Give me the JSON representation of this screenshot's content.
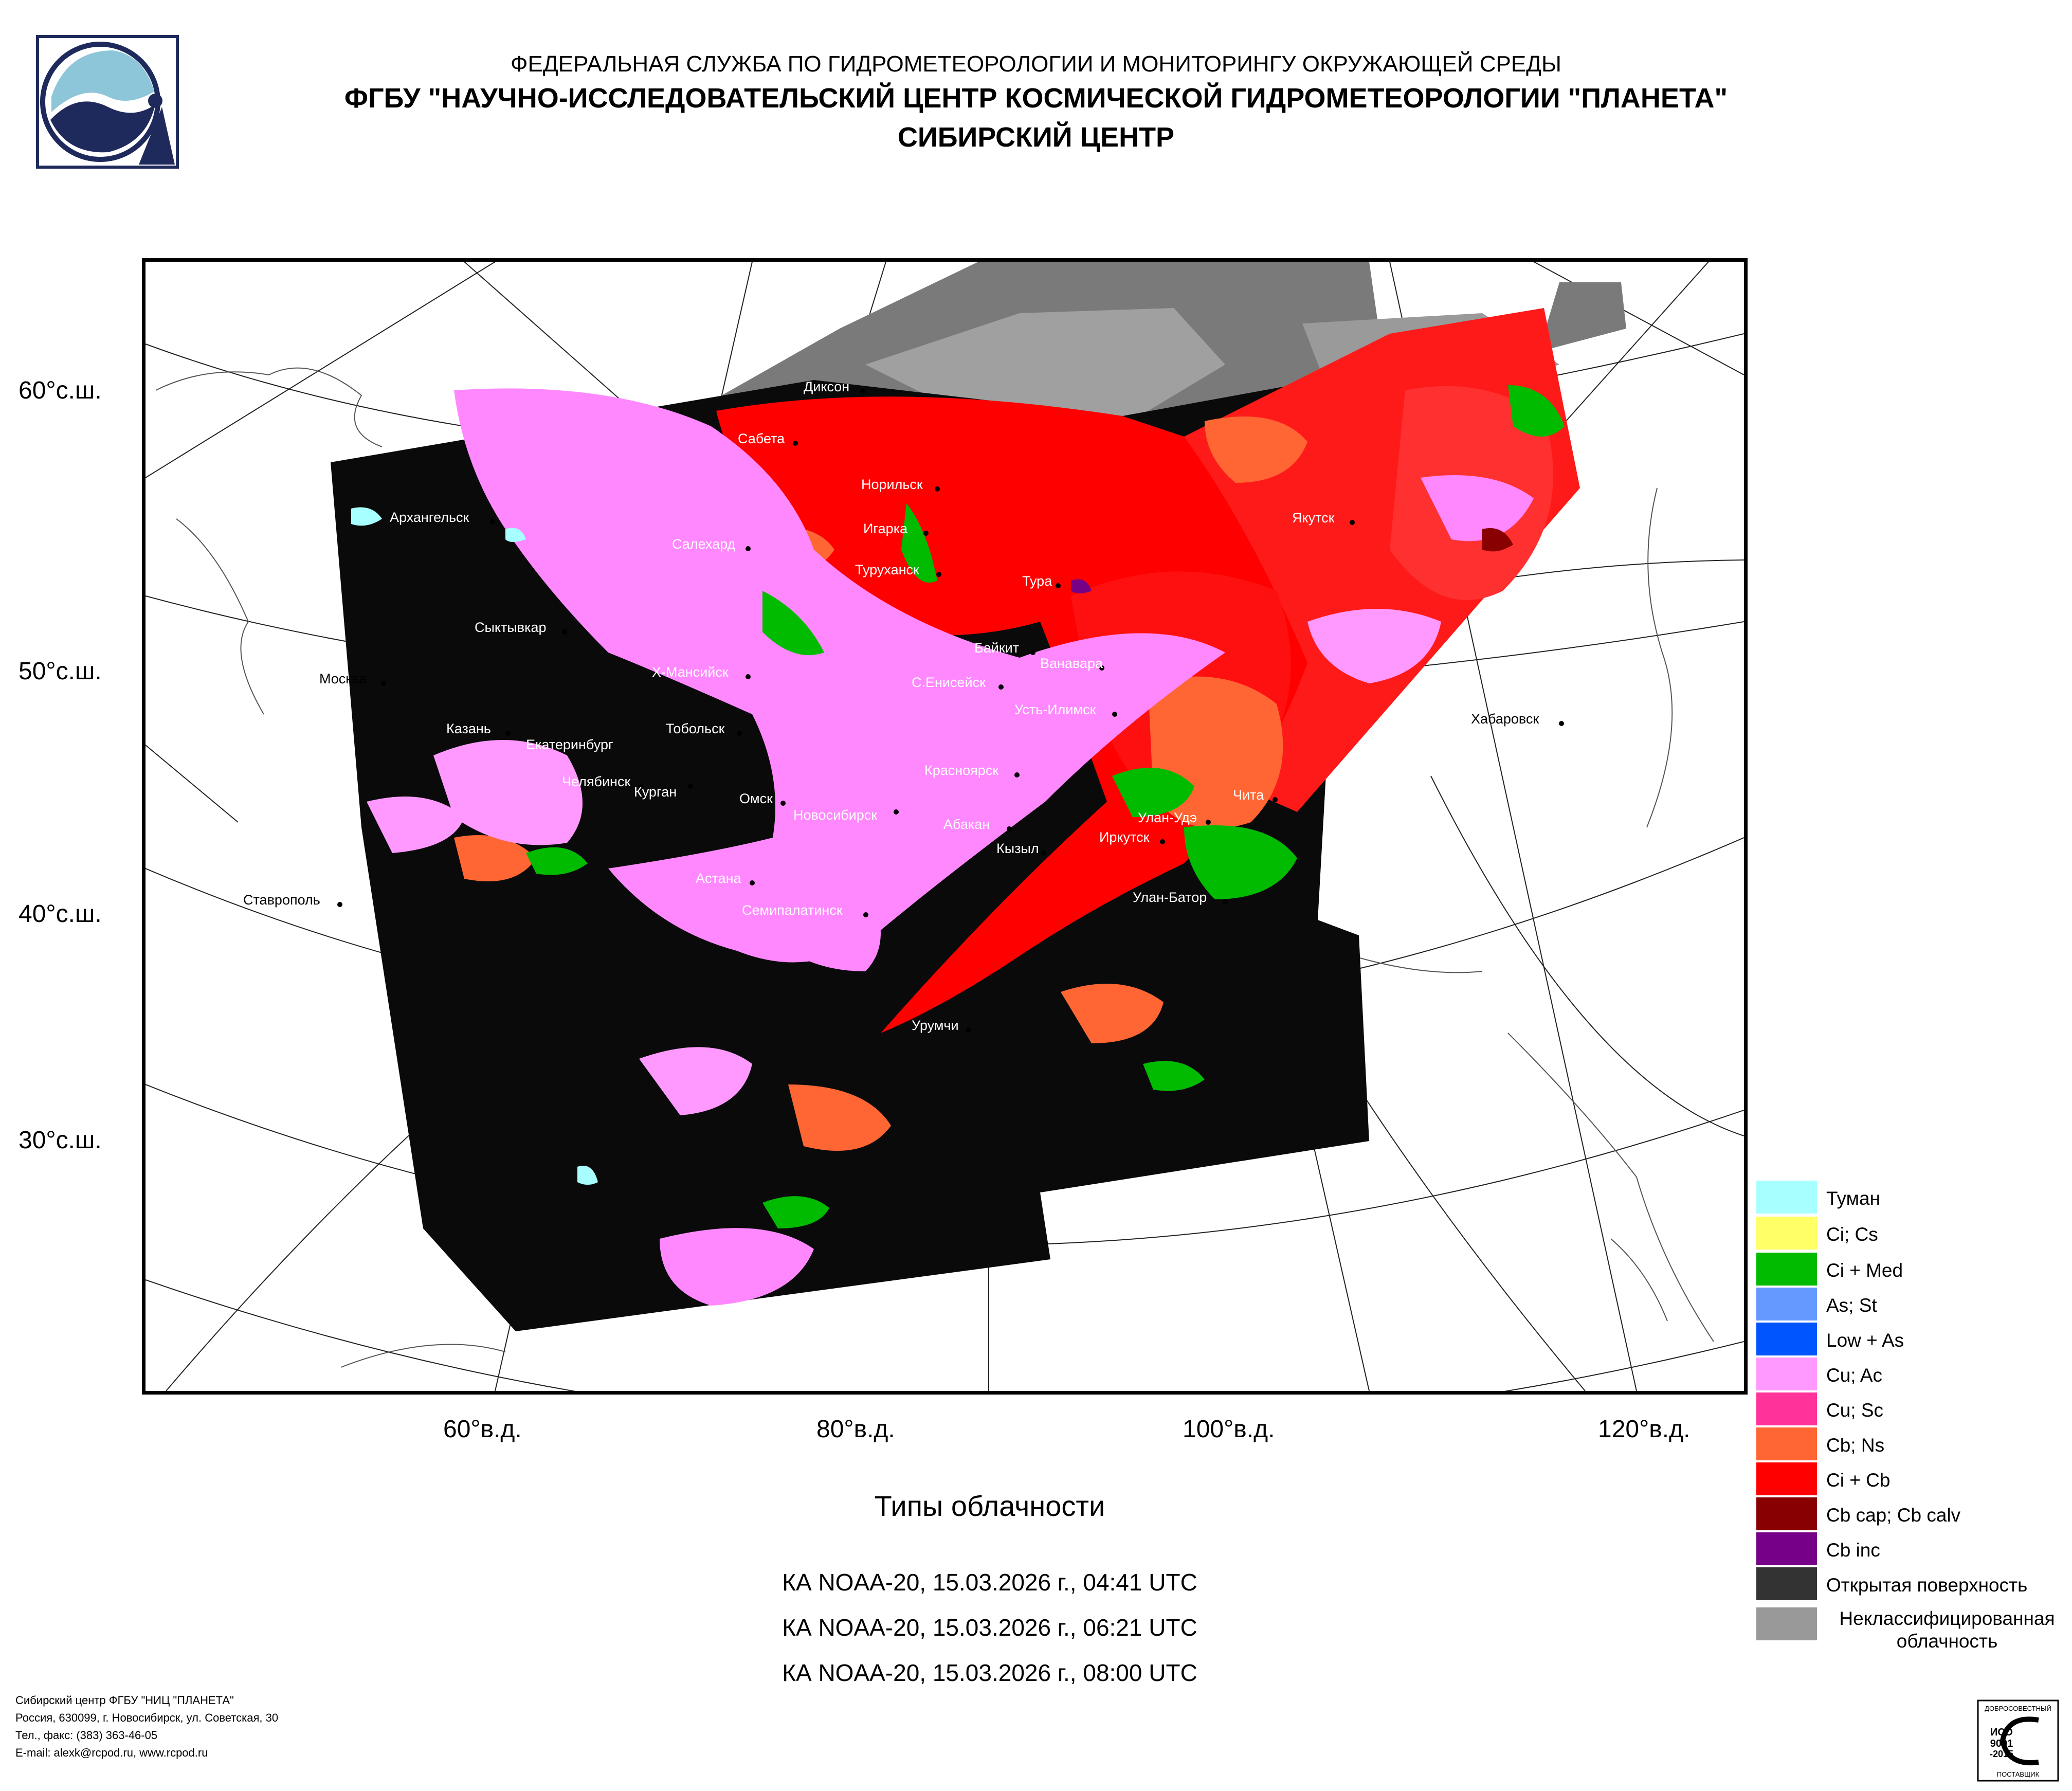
{
  "header": {
    "line1": "ФЕДЕРАЛЬНАЯ СЛУЖБА ПО ГИДРОМЕТЕОРОЛОГИИ И МОНИТОРИНГУ ОКРУЖАЮЩЕЙ СРЕДЫ",
    "line2": "ФГБУ \"НАУЧНО-ИССЛЕДОВАТЕЛЬСКИЙ ЦЕНТР КОСМИЧЕСКОЙ ГИДРОМЕТЕОРОЛОГИИ \"ПЛАНЕТА\"",
    "line3": "СИБИРСКИЙ ЦЕНТР"
  },
  "map": {
    "lat_labels": [
      "60°с.ш.",
      "50°с.ш.",
      "40°с.ш.",
      "30°с.ш."
    ],
    "lon_labels": [
      "60°в.д.",
      "80°в.д.",
      "100°в.д.",
      "120°в.д."
    ],
    "cities": [
      "Диксон",
      "Сабета",
      "Норильск",
      "Архангельск",
      "Игарка",
      "Салехард",
      "Туруханск",
      "Якутск",
      "Тура",
      "Сыктывкар",
      "Байкит",
      "Ванавара",
      "Москва",
      "Х-Мансийск",
      "С.Енисейск",
      "Усть-Илимск",
      "Хабаровск",
      "Казань",
      "Тобольск",
      "Екатеринбург",
      "Красноярск",
      "Челябинск",
      "Курган",
      "Омск",
      "Чита",
      "Новосибирск",
      "Абакан",
      "Улан-Удэ",
      "Иркутск",
      "Кызыл",
      "Ставрополь",
      "Астана",
      "Улан-Батор",
      "Семипалатинск",
      "Урумчи"
    ]
  },
  "legend": [
    {
      "label": "Туман",
      "color": "#a8ffff"
    },
    {
      "label": "Ci; Cs",
      "color": "#ffff66"
    },
    {
      "label": "Ci + Med",
      "color": "#00bb00"
    },
    {
      "label": "As; St",
      "color": "#6699ff"
    },
    {
      "label": "Low + As",
      "color": "#0055ff"
    },
    {
      "label": "Cu; Ac",
      "color": "#ff99ff"
    },
    {
      "label": "Cu; Sc",
      "color": "#ff3399"
    },
    {
      "label": "Cb; Ns",
      "color": "#ff6633"
    },
    {
      "label": "Ci + Cb",
      "color": "#ff0000"
    },
    {
      "label": "Cb cap; Cb calv",
      "color": "#880000"
    },
    {
      "label": "Cb inc",
      "color": "#770088"
    },
    {
      "label": "Открытая поверхность",
      "color": "#333333"
    },
    {
      "label": "Неклассифицированная облачность",
      "color": "#999999"
    }
  ],
  "title": "Типы облачности",
  "passes": [
    "КА NOAA-20, 15.03.2026 г., 04:41 UTC",
    "КА NOAA-20, 15.03.2026 г., 06:21 UTC",
    "КА NOAA-20, 15.03.2026 г., 08:00 UTC"
  ],
  "footer": {
    "line1": "Сибирский центр ФГБУ \"НИЦ \"ПЛАНЕТА\"",
    "line2": "Россия, 630099, г. Новосибирск, ул. Советская, 30",
    "line3": "Тел., факс: (383) 363-46-05",
    "line4": "E-mail: alexk@rcpod.ru, www.rcpod.ru"
  },
  "iso_badge": {
    "line1": "ИСО",
    "line2": "9001",
    "line3": "-2015",
    "top_text": "ДОБРОСОВЕСТНЫЙ",
    "bottom_text": "ПОСТАВЩИК"
  }
}
